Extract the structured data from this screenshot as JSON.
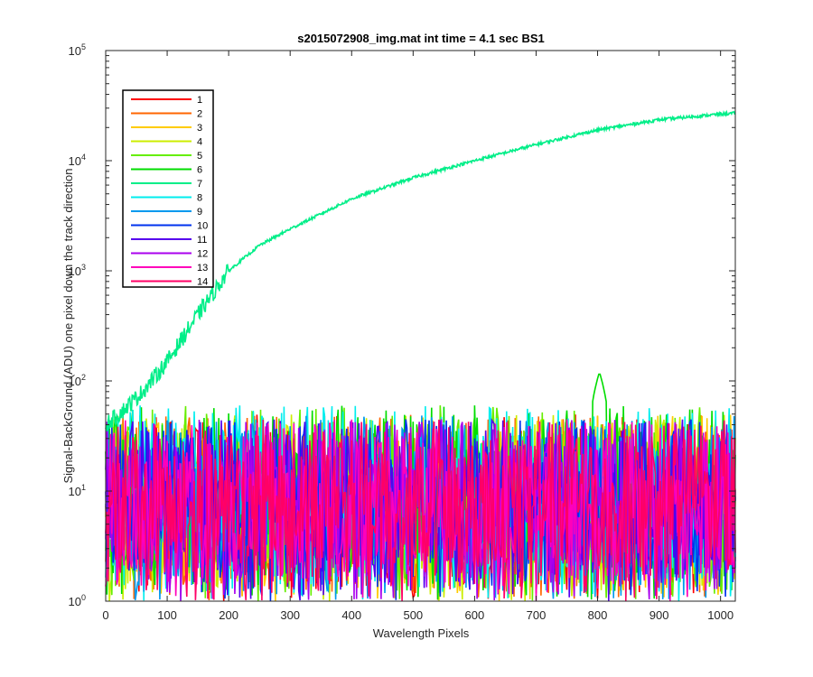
{
  "chart_data": {
    "type": "line",
    "title": "s2015072908_img.mat int time = 4.1 sec   BS1",
    "xlabel": "Wavelength Pixels",
    "ylabel": "Signal-BackGround (ADU) one pixel down the track direction",
    "xlim": [
      0,
      1024
    ],
    "ylim": [
      1,
      100000
    ],
    "yscale": "log",
    "grid": false,
    "legend_location": "upper-left",
    "x_ticks": [
      "0",
      "100",
      "200",
      "300",
      "400",
      "500",
      "600",
      "700",
      "800",
      "900",
      "1000"
    ],
    "y_ticks": [
      {
        "base": "10",
        "exp": "0"
      },
      {
        "base": "10",
        "exp": "1"
      },
      {
        "base": "10",
        "exp": "2"
      },
      {
        "base": "10",
        "exp": "3"
      },
      {
        "base": "10",
        "exp": "4"
      },
      {
        "base": "10",
        "exp": "5"
      }
    ],
    "series": [
      {
        "name": "1",
        "color": "#ff0000",
        "noise_level": [
          1,
          50
        ]
      },
      {
        "name": "2",
        "color": "#ff6600",
        "noise_level": [
          1,
          50
        ]
      },
      {
        "name": "3",
        "color": "#ffcc00",
        "noise_level": [
          1,
          50
        ]
      },
      {
        "name": "4",
        "color": "#ccee00",
        "noise_level": [
          1,
          50
        ]
      },
      {
        "name": "5",
        "color": "#66ee00",
        "noise_level": [
          1,
          60
        ]
      },
      {
        "name": "6",
        "color": "#00dd00",
        "noise_level": [
          1,
          60
        ]
      },
      {
        "name": "7",
        "color": "#00ee88",
        "profile_x": [
          0,
          30,
          60,
          100,
          150,
          200,
          250,
          300,
          400,
          500,
          600,
          700,
          800,
          900,
          1000,
          1024
        ],
        "profile_y": [
          40,
          55,
          80,
          150,
          400,
          1000,
          1700,
          2400,
          4500,
          7000,
          10000,
          14000,
          19000,
          23500,
          26500,
          27000
        ]
      },
      {
        "name": "8",
        "color": "#00eeee",
        "noise_level": [
          1,
          60
        ]
      },
      {
        "name": "9",
        "color": "#0099ee",
        "noise_level": [
          1,
          50
        ]
      },
      {
        "name": "10",
        "color": "#0033ee",
        "noise_level": [
          1,
          45
        ]
      },
      {
        "name": "11",
        "color": "#5500ee",
        "noise_level": [
          1,
          45
        ]
      },
      {
        "name": "12",
        "color": "#aa00ee",
        "noise_level": [
          1,
          45
        ]
      },
      {
        "name": "13",
        "color": "#ff00bb",
        "noise_level": [
          1,
          45
        ]
      },
      {
        "name": "14",
        "color": "#ff0066",
        "noise_level": [
          1,
          45
        ]
      }
    ]
  }
}
